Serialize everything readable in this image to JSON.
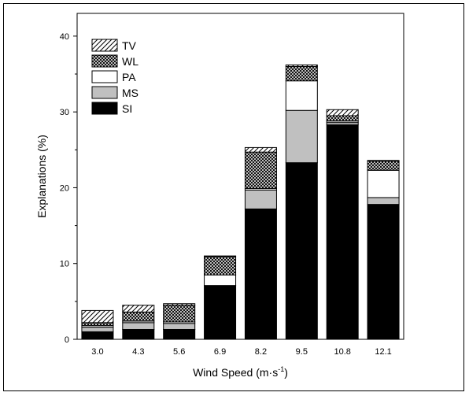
{
  "chart_data": {
    "type": "bar",
    "stacked": true,
    "categories": [
      "3.0",
      "4.3",
      "5.6",
      "6.9",
      "8.2",
      "9.5",
      "10.8",
      "12.1"
    ],
    "series": [
      {
        "name": "SI",
        "values": [
          1.0,
          1.3,
          1.3,
          7.1,
          17.2,
          23.3,
          28.3,
          17.8
        ]
      },
      {
        "name": "MS",
        "values": [
          0.6,
          0.9,
          0.8,
          0.0,
          2.5,
          6.9,
          0.3,
          0.9
        ]
      },
      {
        "name": "PA",
        "values": [
          0.2,
          0.2,
          0.2,
          1.4,
          0.2,
          3.9,
          0.2,
          3.6
        ]
      },
      {
        "name": "WL",
        "values": [
          0.4,
          1.2,
          2.2,
          2.4,
          4.8,
          1.9,
          0.7,
          1.2
        ]
      },
      {
        "name": "TV",
        "values": [
          1.6,
          0.9,
          0.2,
          0.1,
          0.6,
          0.2,
          0.8,
          0.1
        ]
      }
    ],
    "legend_order": [
      "TV",
      "WL",
      "PA",
      "MS",
      "SI"
    ],
    "series_fills": {
      "SI": "solid black",
      "MS": "solid grey",
      "PA": "white",
      "WL": "crosshatch",
      "TV": "diagonal hatch"
    },
    "colors": {
      "SI": "#000000",
      "MS": "#c0c0c0",
      "PA": "#ffffff"
    },
    "xlabel": "Wind Speed (m·s",
    "xlabel_sup": "-1",
    "xlabel_end": ")",
    "ylabel": "Explanations (%)",
    "ylim": [
      0,
      43
    ],
    "yticks": [
      0,
      10,
      20,
      30,
      40
    ],
    "legend_position": "top-left",
    "grid": false
  }
}
